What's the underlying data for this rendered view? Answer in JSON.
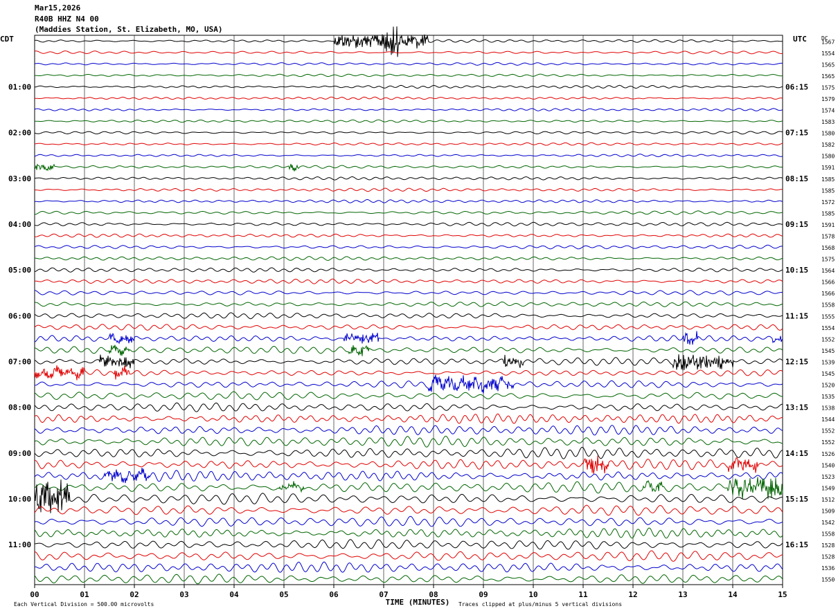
{
  "header": {
    "date": "Mar15,2026",
    "channel": "R40B HHZ N4 00",
    "station": "(Maddies Station, St. Elizabeth, MO, USA)"
  },
  "axes": {
    "left_zone": "CDT",
    "right_zone": "UTC",
    "dc_label": "DC",
    "xlabel": "TIME (MINUTES)",
    "x_ticks": [
      "00",
      "01",
      "02",
      "03",
      "04",
      "05",
      "06",
      "07",
      "08",
      "09",
      "10",
      "11",
      "12",
      "13",
      "14",
      "15"
    ]
  },
  "footer": {
    "scale": "Each Vertical Division =  500.00 microvolts",
    "clip": "Traces clipped at plus/minus 5 vertical divisions"
  },
  "chart_data": {
    "type": "helicorder",
    "title": "R40B HHZ N4 00",
    "minutes_per_line": 15,
    "xlim": [
      0,
      15
    ],
    "line_colors": [
      "#000000",
      "#e00000",
      "#0000cc",
      "#006400"
    ],
    "left_labels": [
      "",
      "",
      "",
      "",
      "01:00",
      "",
      "",
      "",
      "02:00",
      "",
      "",
      "",
      "03:00",
      "",
      "",
      "",
      "04:00",
      "",
      "",
      "",
      "05:00",
      "",
      "",
      "",
      "06:00",
      "",
      "",
      "",
      "07:00",
      "",
      "",
      "",
      "08:00",
      "",
      "",
      "",
      "09:00",
      "",
      "",
      "",
      "10:00",
      "",
      "",
      "",
      "11:00",
      "",
      "",
      ""
    ],
    "right_labels": [
      "",
      "",
      "",
      "",
      "06:15",
      "",
      "",
      "",
      "07:15",
      "",
      "",
      "",
      "08:15",
      "",
      "",
      "",
      "09:15",
      "",
      "",
      "",
      "10:15",
      "",
      "",
      "",
      "11:15",
      "",
      "",
      "",
      "12:15",
      "",
      "",
      "",
      "13:15",
      "",
      "",
      "",
      "14:15",
      "",
      "",
      "",
      "15:15",
      "",
      "",
      "",
      "16:15",
      "",
      "",
      ""
    ],
    "dc_offsets": [
      1567,
      1554,
      1565,
      1565,
      1575,
      1579,
      1574,
      1583,
      1580,
      1582,
      1580,
      1591,
      1585,
      1585,
      1572,
      1585,
      1591,
      1578,
      1568,
      1575,
      1564,
      1566,
      1566,
      1558,
      1555,
      1554,
      1552,
      1545,
      1539,
      1545,
      1520,
      1535,
      1538,
      1544,
      1552,
      1552,
      1526,
      1540,
      1523,
      1549,
      1512,
      1509,
      1542,
      1558,
      1528,
      1528,
      1536,
      1550
    ],
    "line_amplitudes": [
      1.0,
      1.0,
      0.9,
      0.9,
      1.0,
      0.9,
      0.9,
      0.9,
      1.0,
      0.9,
      0.9,
      1.0,
      1.1,
      1.1,
      1.1,
      1.2,
      1.3,
      1.2,
      1.3,
      1.3,
      1.5,
      1.6,
      1.6,
      1.7,
      2.0,
      2.1,
      2.2,
      2.5,
      2.6,
      2.2,
      2.6,
      2.8,
      3.0,
      3.3,
      3.4,
      3.6,
      3.8,
      3.6,
      3.7,
      3.8,
      3.8,
      3.6,
      3.5,
      3.5,
      3.4,
      3.5,
      3.6,
      3.4
    ]
  }
}
